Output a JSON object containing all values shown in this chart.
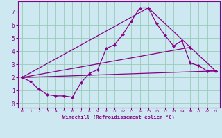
{
  "xlabel": "Windchill (Refroidissement éolien,°C)",
  "background_color": "#cde8f0",
  "line_color": "#880088",
  "grid_color": "#99ccbb",
  "xlim": [
    -0.5,
    23.5
  ],
  "ylim": [
    -0.3,
    7.8
  ],
  "xticks": [
    0,
    1,
    2,
    3,
    4,
    5,
    6,
    7,
    8,
    9,
    10,
    11,
    12,
    13,
    14,
    15,
    16,
    17,
    18,
    19,
    20,
    21,
    22,
    23
  ],
  "yticks": [
    0,
    1,
    2,
    3,
    4,
    5,
    6,
    7
  ],
  "line1_x": [
    0,
    1,
    2,
    3,
    4,
    5,
    6,
    7,
    8,
    9,
    10,
    11,
    12,
    13,
    14,
    15,
    16,
    17,
    18,
    19,
    20,
    21,
    22,
    23
  ],
  "line1_y": [
    2.0,
    1.7,
    1.1,
    0.7,
    0.6,
    0.6,
    0.5,
    1.6,
    2.3,
    2.6,
    4.2,
    4.5,
    5.3,
    6.3,
    7.3,
    7.3,
    6.1,
    5.2,
    4.4,
    4.8,
    3.1,
    2.9,
    2.5,
    2.5
  ],
  "line2_x": [
    0,
    23
  ],
  "line2_y": [
    2.0,
    2.5
  ],
  "line3_x": [
    0,
    15,
    23
  ],
  "line3_y": [
    2.0,
    7.3,
    2.5
  ],
  "line4_x": [
    0,
    20
  ],
  "line4_y": [
    2.0,
    4.3
  ],
  "marker": "D",
  "markersize": 2.5,
  "linewidth": 0.9
}
